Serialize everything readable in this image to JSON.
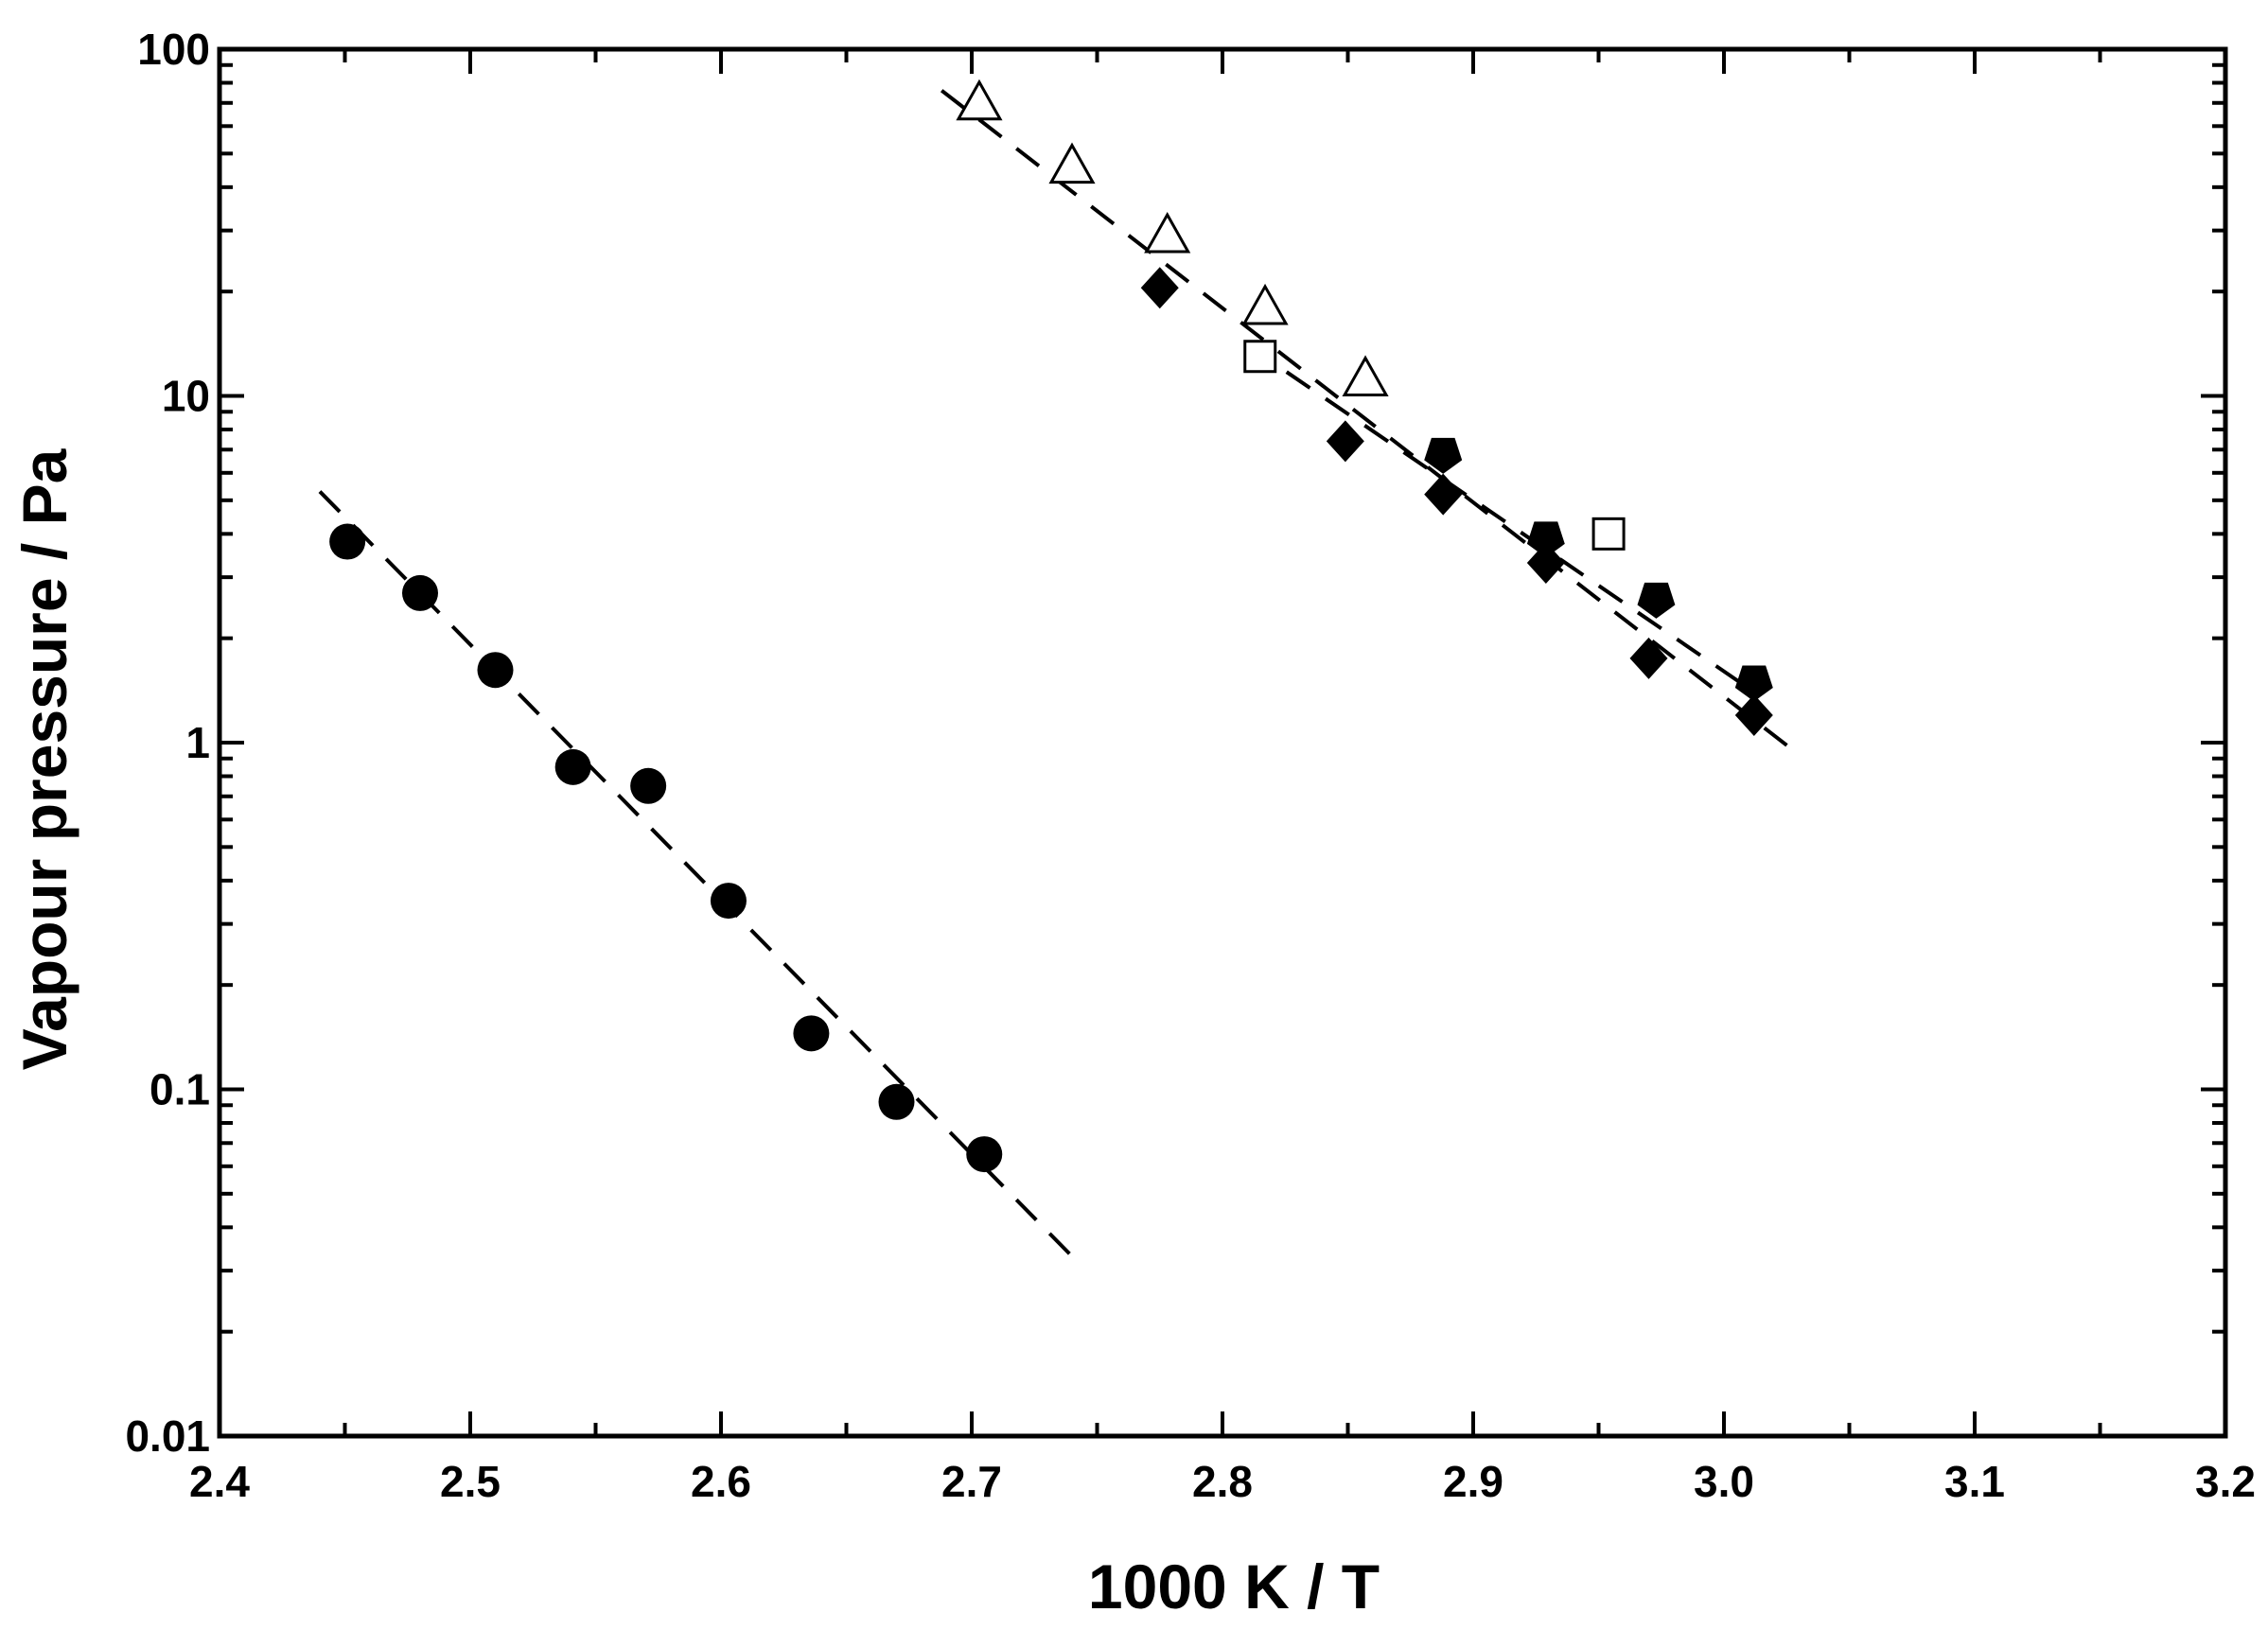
{
  "chart_data": {
    "type": "scatter",
    "title": "",
    "xlabel": "1000 K / T",
    "ylabel": "Vapour pressure / Pa",
    "xlim": [
      2.4,
      3.2
    ],
    "ylim": [
      0.01,
      100
    ],
    "yscale": "log",
    "grid": false,
    "legend": "none",
    "x_ticks": [
      "2.4",
      "2.5",
      "2.6",
      "2.7",
      "2.8",
      "2.9",
      "3.0",
      "3.1",
      "3.2"
    ],
    "x_tick_values": [
      2.4,
      2.5,
      2.6,
      2.7,
      2.8,
      2.9,
      3.0,
      3.1,
      3.2
    ],
    "y_ticks": [
      "0.01",
      "0.1",
      "1",
      "10",
      "100"
    ],
    "y_tick_values": [
      0.01,
      0.1,
      1,
      10,
      100
    ],
    "series": [
      {
        "marker": "filled-circle",
        "color": "#000000",
        "points": [
          [
            2.451,
            3.8
          ],
          [
            2.48,
            2.7
          ],
          [
            2.51,
            1.62
          ],
          [
            2.541,
            0.85
          ],
          [
            2.571,
            0.75
          ],
          [
            2.603,
            0.35
          ],
          [
            2.636,
            0.145
          ],
          [
            2.67,
            0.092
          ],
          [
            2.705,
            0.065
          ]
        ]
      },
      {
        "marker": "open-triangle",
        "color": "#000000",
        "points": [
          [
            2.703,
            70
          ],
          [
            2.74,
            46
          ],
          [
            2.778,
            29
          ],
          [
            2.817,
            18
          ],
          [
            2.857,
            11.2
          ]
        ]
      },
      {
        "marker": "filled-diamond",
        "color": "#000000",
        "points": [
          [
            2.775,
            20.5
          ],
          [
            2.849,
            7.4
          ],
          [
            2.888,
            5.2
          ],
          [
            2.929,
            3.3
          ],
          [
            2.97,
            1.75
          ],
          [
            3.012,
            1.2
          ]
        ]
      },
      {
        "marker": "open-square",
        "color": "#000000",
        "points": [
          [
            2.815,
            13
          ],
          [
            2.954,
            4.0
          ]
        ]
      },
      {
        "marker": "filled-pentagon",
        "color": "#000000",
        "points": [
          [
            2.888,
            6.8
          ],
          [
            2.929,
            3.9
          ],
          [
            2.973,
            2.6
          ],
          [
            3.012,
            1.5
          ]
        ]
      }
    ],
    "fit_lines": [
      {
        "style": "dashed",
        "color": "#000000",
        "from": [
          2.44,
          5.3
        ],
        "to": [
          2.74,
          0.033
        ]
      },
      {
        "style": "dashed",
        "color": "#000000",
        "from": [
          2.688,
          76
        ],
        "to": [
          3.031,
          0.91
        ]
      },
      {
        "style": "dashed",
        "color": "#000000",
        "from": [
          2.81,
          14
        ],
        "to": [
          3.012,
          1.4
        ]
      }
    ]
  }
}
